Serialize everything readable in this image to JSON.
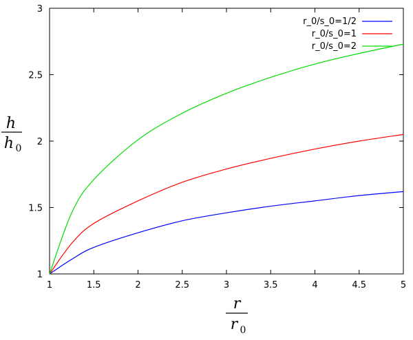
{
  "chart_data": {
    "type": "line",
    "xlabel": {
      "num": "r",
      "den": "r",
      "den_sub": "0"
    },
    "ylabel": {
      "num": "h",
      "den": "h",
      "den_sub": "0"
    },
    "xlim": [
      1,
      5
    ],
    "ylim": [
      1,
      3
    ],
    "x_ticks": [
      "1",
      "1.5",
      "2",
      "2.5",
      "3",
      "3.5",
      "4",
      "4.5",
      "5"
    ],
    "y_ticks": [
      "1",
      "1.5",
      "2",
      "2.5",
      "3"
    ],
    "grid": false,
    "legend": "top-right",
    "x": [
      1,
      1.25,
      1.5,
      2,
      2.5,
      3,
      3.5,
      4,
      4.5,
      5
    ],
    "series": [
      {
        "name": "r_0/s_0=1/2",
        "color": "#0000ff",
        "values": [
          1.0,
          1.11,
          1.2,
          1.31,
          1.4,
          1.46,
          1.51,
          1.55,
          1.59,
          1.62
        ]
      },
      {
        "name": "r_0/s_0=1",
        "color": "#ff0000",
        "values": [
          1.0,
          1.23,
          1.38,
          1.55,
          1.69,
          1.79,
          1.87,
          1.94,
          2.0,
          2.05
        ]
      },
      {
        "name": "r_0/s_0=2",
        "color": "#00dd00",
        "values": [
          1.0,
          1.46,
          1.71,
          2.01,
          2.21,
          2.36,
          2.48,
          2.58,
          2.66,
          2.73
        ]
      }
    ]
  }
}
